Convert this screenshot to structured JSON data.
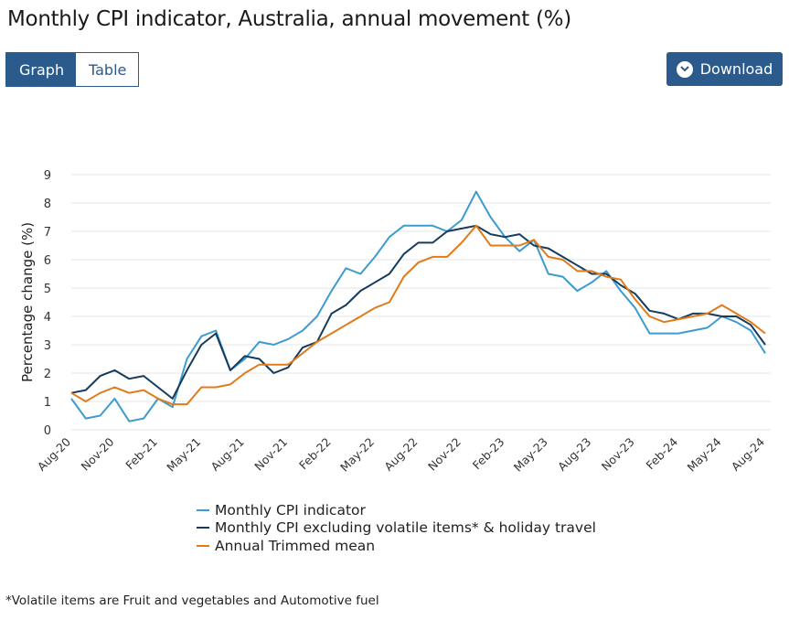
{
  "page": {
    "title": "Monthly CPI indicator, Australia, annual movement (%)",
    "footnote": "*Volatile items are Fruit and vegetables and Automotive fuel"
  },
  "toolbar": {
    "graph_label": "Graph",
    "table_label": "Table",
    "download_label": "Download",
    "download_icon": "chevron-down-icon",
    "accent_color": "#2b5a8c"
  },
  "chart_data": {
    "type": "line",
    "title": "Monthly CPI indicator, Australia, annual movement (%)",
    "xlabel": "",
    "ylabel": "Percentage change (%)",
    "ylim": [
      0,
      9
    ],
    "yticks": [
      "0",
      "1",
      "2",
      "3",
      "4",
      "5",
      "6",
      "7",
      "8",
      "9"
    ],
    "grid": "horizontal",
    "legend_position": "bottom",
    "x": [
      "Aug-20",
      "Sep-20",
      "Oct-20",
      "Nov-20",
      "Dec-20",
      "Jan-21",
      "Feb-21",
      "Mar-21",
      "Apr-21",
      "May-21",
      "Jun-21",
      "Jul-21",
      "Aug-21",
      "Sep-21",
      "Oct-21",
      "Nov-21",
      "Dec-21",
      "Jan-22",
      "Feb-22",
      "Mar-22",
      "Apr-22",
      "May-22",
      "Jun-22",
      "Jul-22",
      "Aug-22",
      "Sep-22",
      "Oct-22",
      "Nov-22",
      "Dec-22",
      "Jan-23",
      "Feb-23",
      "Mar-23",
      "Apr-23",
      "May-23",
      "Jun-23",
      "Jul-23",
      "Aug-23",
      "Sep-23",
      "Oct-23",
      "Nov-23",
      "Dec-23",
      "Jan-24",
      "Feb-24",
      "Mar-24",
      "Apr-24",
      "May-24",
      "Jun-24",
      "Jul-24",
      "Aug-24"
    ],
    "tick_labels": [
      "Aug-20",
      "Nov-20",
      "Feb-21",
      "May-21",
      "Aug-21",
      "Nov-21",
      "Feb-22",
      "May-22",
      "Aug-22",
      "Nov-22",
      "Feb-23",
      "May-23",
      "Aug-23",
      "Nov-23",
      "Feb-24",
      "May-24",
      "Aug-24"
    ],
    "series": [
      {
        "name": "Monthly CPI indicator",
        "color": "#3d9bd0",
        "values": [
          1.1,
          0.4,
          0.5,
          1.1,
          0.3,
          0.4,
          1.1,
          0.8,
          2.5,
          3.3,
          3.5,
          2.1,
          2.5,
          3.1,
          3.0,
          3.2,
          3.5,
          4.0,
          4.9,
          5.7,
          5.5,
          6.1,
          6.8,
          7.2,
          7.2,
          7.2,
          7.0,
          7.4,
          8.4,
          7.5,
          6.8,
          6.3,
          6.7,
          5.5,
          5.4,
          4.9,
          5.2,
          5.6,
          4.9,
          4.3,
          3.4,
          3.4,
          3.4,
          3.5,
          3.6,
          4.0,
          3.8,
          3.5,
          2.7
        ]
      },
      {
        "name": "Monthly CPI excluding volatile items* & holiday travel",
        "color": "#163b5c",
        "values": [
          1.3,
          1.4,
          1.9,
          2.1,
          1.8,
          1.9,
          1.5,
          1.1,
          2.1,
          3.0,
          3.4,
          2.1,
          2.6,
          2.5,
          2.0,
          2.2,
          2.9,
          3.1,
          4.1,
          4.4,
          4.9,
          5.2,
          5.5,
          6.2,
          6.6,
          6.6,
          7.0,
          7.1,
          7.2,
          6.9,
          6.8,
          6.9,
          6.5,
          6.4,
          6.1,
          5.8,
          5.5,
          5.5,
          5.1,
          4.8,
          4.2,
          4.1,
          3.9,
          4.1,
          4.1,
          4.0,
          4.0,
          3.7,
          3.0
        ]
      },
      {
        "name": "Annual Trimmed mean",
        "color": "#e07b1c",
        "values": [
          1.3,
          1.0,
          1.3,
          1.5,
          1.3,
          1.4,
          1.1,
          0.9,
          0.9,
          1.5,
          1.5,
          1.6,
          2.0,
          2.3,
          2.3,
          2.3,
          2.7,
          3.1,
          3.4,
          3.7,
          4.0,
          4.3,
          4.5,
          5.4,
          5.9,
          6.1,
          6.1,
          6.6,
          7.2,
          6.5,
          6.5,
          6.5,
          6.7,
          6.1,
          6.0,
          5.6,
          5.6,
          5.4,
          5.3,
          4.6,
          4.0,
          3.8,
          3.9,
          4.0,
          4.1,
          4.4,
          4.1,
          3.8,
          3.4
        ]
      }
    ]
  }
}
